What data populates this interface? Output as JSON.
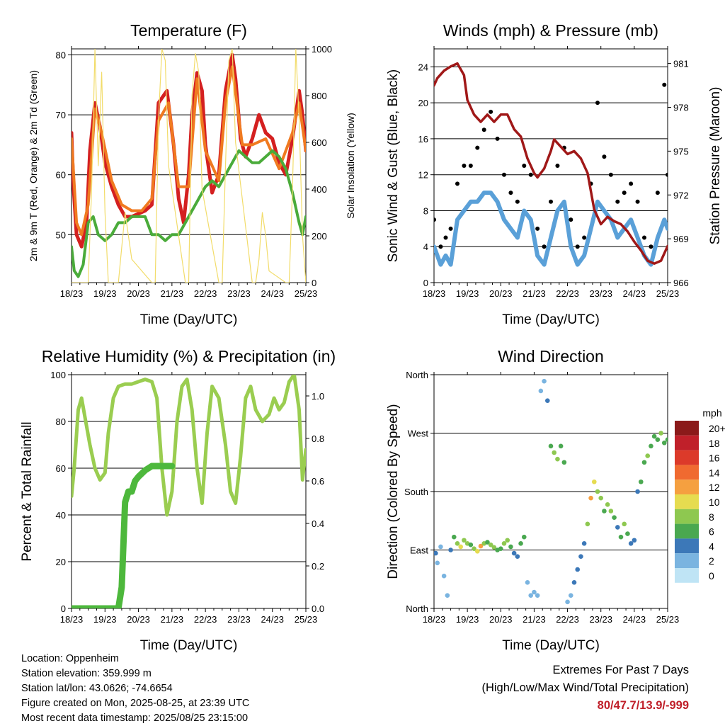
{
  "panels": {
    "temperature": {
      "title": "Temperature (F)",
      "ylabel_left": "2m & 9m T (Red, Orange) & 2m Td (Green)",
      "ylabel_right": "Solar Insolation (Yellow)",
      "xlabel": "Time (Day/UTC)"
    },
    "winds": {
      "title": "Winds (mph) & Pressure (mb)",
      "ylabel_left": "Sonic Wind & Gust (Blue, Black)",
      "ylabel_right": "Station Pressure (Maroon)",
      "xlabel": "Time (Day/UTC)"
    },
    "humidity": {
      "title": "Relative Humidity (%) & Precipitation (in)",
      "ylabel_left": "Percent & Total Rainfall",
      "xlabel": "Time (Day/UTC)"
    },
    "direction": {
      "title": "Wind Direction",
      "ylabel_left": "Direction (Colored By Speed)",
      "xlabel": "Time (Day/UTC)",
      "legend_title": "mph"
    }
  },
  "info": {
    "location": "Location: Oppenheim",
    "elevation": "Station elevation: 359.999 m",
    "latlon": "Station lat/lon: 43.0626; -74.6654",
    "created": "Figure created on Mon, 2025-08-25, at 23:39 UTC",
    "recent": "Most recent data timestamp: 2025/08/25 23:15:00"
  },
  "extremes": {
    "title": "Extremes For Past 7 Days",
    "subtitle": "(High/Low/Max Wind/Total Precipitation)",
    "values": "80/47.7/13.9/-999"
  },
  "colors": {
    "temp_2m": "#d42020",
    "temp_9m": "#f07a20",
    "dewpoint": "#4aab3a",
    "solar": "#f2dc6a",
    "wind": "#5aa0d8",
    "gust": "#000000",
    "pressure": "#a01818",
    "rh": "#9acd50",
    "precip": "#4db83c"
  },
  "chart_data": [
    {
      "type": "line",
      "title": "Temperature (F)",
      "x_ticks": [
        "18/23",
        "19/23",
        "20/23",
        "21/23",
        "22/23",
        "23/23",
        "24/23",
        "25/23"
      ],
      "xlim": [
        0,
        7
      ],
      "ylim": [
        42,
        81
      ],
      "yticks": [
        50,
        60,
        70,
        80
      ],
      "y2lim": [
        0,
        1000
      ],
      "y2ticks": [
        0,
        200,
        400,
        600,
        800,
        1000
      ],
      "grid": true,
      "series": [
        {
          "name": "2m T",
          "axis": "left",
          "color": "#d42020",
          "x": [
            0,
            0.06,
            0.15,
            0.3,
            0.45,
            0.55,
            0.7,
            0.85,
            1.0,
            1.2,
            1.4,
            1.6,
            1.8,
            2.0,
            2.2,
            2.4,
            2.6,
            2.85,
            3.05,
            3.2,
            3.35,
            3.5,
            3.6,
            3.75,
            3.9,
            4.0,
            4.2,
            4.4,
            4.6,
            4.8,
            4.9,
            5.05,
            5.2,
            5.4,
            5.6,
            5.8,
            6.0,
            6.2,
            6.4,
            6.6,
            6.8,
            6.9,
            7.0
          ],
          "y": [
            67,
            58,
            50,
            48,
            52,
            64,
            72,
            68,
            62,
            58,
            55,
            53,
            53,
            53.5,
            54,
            55,
            72,
            74,
            65,
            56,
            52,
            60,
            70,
            77,
            74,
            65,
            57,
            60,
            74,
            80,
            76,
            66,
            63,
            66,
            70,
            67,
            66,
            62,
            60,
            66,
            74,
            70,
            64
          ]
        },
        {
          "name": "9m T",
          "axis": "left",
          "color": "#f07a20",
          "x": [
            0,
            0.15,
            0.3,
            0.5,
            0.7,
            0.9,
            1.2,
            1.5,
            1.8,
            2.1,
            2.4,
            2.6,
            2.9,
            3.2,
            3.5,
            3.75,
            4.0,
            4.4,
            4.6,
            4.8,
            5.1,
            5.4,
            5.8,
            6.2,
            6.6,
            6.8,
            7.0
          ],
          "y": [
            66,
            52,
            50,
            55,
            71,
            67,
            59,
            55,
            54,
            54,
            56,
            69,
            72,
            58,
            58,
            76,
            64,
            59,
            72,
            78,
            65,
            65,
            66,
            61,
            67,
            72,
            64
          ]
        },
        {
          "name": "2m Td",
          "axis": "left",
          "color": "#4aab3a",
          "x": [
            0,
            0.08,
            0.2,
            0.35,
            0.5,
            0.65,
            0.8,
            1.0,
            1.2,
            1.4,
            1.6,
            1.8,
            2.0,
            2.2,
            2.4,
            2.6,
            2.8,
            3.0,
            3.2,
            3.4,
            3.6,
            3.8,
            4.0,
            4.2,
            4.4,
            4.6,
            4.8,
            5.0,
            5.2,
            5.4,
            5.6,
            5.8,
            6.0,
            6.2,
            6.4,
            6.6,
            6.8,
            6.9,
            7.0
          ],
          "y": [
            48,
            44,
            43,
            45,
            52,
            53,
            50,
            49,
            50,
            52,
            52,
            53,
            53,
            53,
            50,
            50,
            49,
            50,
            50,
            52,
            54,
            56,
            58,
            59,
            58,
            60,
            62,
            64,
            63,
            62,
            62,
            63,
            64,
            63,
            61,
            57,
            52,
            50,
            53
          ]
        },
        {
          "name": "Solar",
          "axis": "right",
          "color": "#f2dc6a",
          "x": [
            0,
            0.5,
            0.6,
            0.7,
            0.8,
            0.9,
            1.0,
            1.1,
            1.4,
            1.5,
            1.6,
            1.7,
            1.8,
            2.4,
            2.5,
            2.6,
            2.7,
            2.8,
            2.9,
            3.4,
            3.5,
            3.6,
            3.7,
            3.8,
            3.9,
            4.4,
            4.5,
            4.6,
            4.7,
            4.8,
            4.9,
            5.4,
            5.5,
            5.6,
            5.7,
            5.8,
            5.9,
            6.4,
            6.5,
            6.6,
            6.7,
            6.8,
            6.9,
            7.0
          ],
          "y": [
            0,
            0,
            400,
            1000,
            500,
            900,
            300,
            0,
            0,
            150,
            300,
            200,
            100,
            0,
            0,
            700,
            1000,
            950,
            500,
            0,
            0,
            800,
            980,
            900,
            400,
            0,
            0,
            500,
            950,
            1000,
            600,
            0,
            0,
            100,
            300,
            200,
            50,
            0,
            0,
            400,
            1000,
            700,
            200,
            0
          ]
        }
      ]
    },
    {
      "type": "line",
      "title": "Winds (mph) & Pressure (mb)",
      "x_ticks": [
        "18/23",
        "19/23",
        "20/23",
        "21/23",
        "22/23",
        "23/23",
        "24/23",
        "25/23"
      ],
      "xlim": [
        0,
        7
      ],
      "ylim": [
        0,
        26
      ],
      "yticks": [
        0,
        4,
        8,
        12,
        16,
        20,
        24
      ],
      "y2lim": [
        966,
        982
      ],
      "y2ticks": [
        966,
        969,
        972,
        975,
        978,
        981
      ],
      "grid": true,
      "series": [
        {
          "name": "Sonic Wind",
          "axis": "left",
          "color": "#5aa0d8",
          "x": [
            0,
            0.2,
            0.35,
            0.5,
            0.7,
            0.9,
            1.1,
            1.3,
            1.5,
            1.7,
            1.9,
            2.1,
            2.3,
            2.5,
            2.7,
            2.9,
            3.1,
            3.3,
            3.5,
            3.7,
            3.9,
            4.1,
            4.3,
            4.5,
            4.7,
            4.9,
            5.1,
            5.3,
            5.5,
            5.7,
            5.9,
            6.1,
            6.3,
            6.5,
            6.7,
            6.9,
            7.0
          ],
          "y": [
            4,
            2,
            3,
            2,
            7,
            8,
            9,
            9,
            10,
            10,
            9,
            7,
            6,
            5,
            8,
            7,
            3,
            2,
            5,
            8,
            9,
            4,
            2,
            3,
            6,
            9,
            8,
            7,
            5,
            6,
            7,
            5,
            3,
            2,
            5,
            7,
            6
          ]
        },
        {
          "name": "Gust",
          "axis": "left",
          "color": "#000000",
          "x": [
            0,
            0.2,
            0.35,
            0.5,
            0.7,
            0.9,
            1.1,
            1.3,
            1.5,
            1.7,
            1.9,
            2.1,
            2.3,
            2.5,
            2.7,
            2.9,
            3.1,
            3.3,
            3.5,
            3.7,
            3.9,
            4.1,
            4.3,
            4.5,
            4.7,
            4.9,
            5.1,
            5.3,
            5.5,
            5.7,
            5.9,
            6.1,
            6.3,
            6.5,
            6.7,
            6.9,
            7.0
          ],
          "y": [
            7,
            4,
            5,
            6,
            11,
            13,
            13,
            15,
            17,
            19,
            16,
            12,
            10,
            9,
            13,
            12,
            6,
            4,
            9,
            13,
            15,
            7,
            4,
            5,
            11,
            20,
            14,
            12,
            9,
            10,
            11,
            9,
            5,
            4,
            10,
            22,
            12
          ]
        },
        {
          "name": "Pressure",
          "axis": "right",
          "color": "#a01818",
          "x": [
            0,
            0.1,
            0.3,
            0.5,
            0.7,
            0.9,
            1.0,
            1.2,
            1.4,
            1.6,
            1.8,
            2.0,
            2.2,
            2.4,
            2.6,
            2.8,
            3.0,
            3.1,
            3.3,
            3.5,
            3.6,
            3.8,
            4.0,
            4.2,
            4.4,
            4.6,
            4.8,
            5.0,
            5.2,
            5.4,
            5.6,
            5.8,
            6.0,
            6.2,
            6.4,
            6.6,
            6.8,
            7.0
          ],
          "y": [
            979.5,
            980,
            980.5,
            980.8,
            981,
            980.2,
            978.5,
            977.5,
            977,
            977.5,
            977,
            977.5,
            977.5,
            976.5,
            976,
            974.5,
            973.5,
            973.2,
            973.8,
            975,
            975.8,
            975.3,
            974.8,
            975,
            974.5,
            973.5,
            971,
            970,
            970.5,
            970.2,
            970,
            969.5,
            968.8,
            968.2,
            967.5,
            967.3,
            967.5,
            968.5
          ]
        }
      ]
    },
    {
      "type": "line",
      "title": "Relative Humidity (%) & Precipitation (in)",
      "x_ticks": [
        "18/23",
        "19/23",
        "20/23",
        "21/23",
        "22/23",
        "23/23",
        "24/23",
        "25/23"
      ],
      "xlim": [
        0,
        7
      ],
      "ylim": [
        0,
        100
      ],
      "yticks": [
        0,
        20,
        40,
        60,
        80,
        100
      ],
      "y2lim": [
        0,
        1.1
      ],
      "y2ticks": [
        0.0,
        0.2,
        0.4,
        0.6,
        0.8,
        1.0
      ],
      "grid": true,
      "series": [
        {
          "name": "RH",
          "axis": "left",
          "color": "#9acd50",
          "x": [
            0,
            0.08,
            0.2,
            0.3,
            0.4,
            0.55,
            0.7,
            0.85,
            1.0,
            1.1,
            1.25,
            1.4,
            1.6,
            1.8,
            2.0,
            2.2,
            2.4,
            2.55,
            2.7,
            2.85,
            3.0,
            3.15,
            3.3,
            3.45,
            3.6,
            3.75,
            3.9,
            4.05,
            4.2,
            4.4,
            4.6,
            4.75,
            4.9,
            5.05,
            5.2,
            5.35,
            5.5,
            5.7,
            5.9,
            6.05,
            6.2,
            6.35,
            6.5,
            6.65,
            6.8,
            6.9,
            7.0
          ],
          "y": [
            48,
            60,
            85,
            90,
            82,
            70,
            60,
            55,
            58,
            75,
            90,
            95,
            96,
            96,
            97,
            98,
            97,
            90,
            60,
            40,
            50,
            80,
            95,
            98,
            85,
            60,
            45,
            75,
            95,
            90,
            70,
            50,
            45,
            65,
            90,
            95,
            85,
            80,
            83,
            90,
            85,
            88,
            97,
            100,
            85,
            55,
            68
          ]
        },
        {
          "name": "Total Rainfall",
          "axis": "right",
          "color": "#4db83c",
          "x": [
            0,
            1.4,
            1.5,
            1.55,
            1.6,
            1.7,
            1.8,
            1.9,
            2.0,
            2.2,
            2.4,
            2.6,
            2.8,
            3.0
          ],
          "y": [
            0,
            0,
            0.1,
            0.3,
            0.5,
            0.55,
            0.55,
            0.6,
            0.62,
            0.65,
            0.67,
            0.67,
            0.67,
            0.67
          ]
        }
      ]
    },
    {
      "type": "scatter",
      "title": "Wind Direction",
      "x_ticks": [
        "18/23",
        "19/23",
        "20/23",
        "21/23",
        "22/23",
        "23/23",
        "24/23",
        "25/23"
      ],
      "xlim": [
        0,
        7
      ],
      "y_ticks": [
        "North",
        "East",
        "South",
        "West",
        "North"
      ],
      "ylim": [
        0,
        360
      ],
      "grid": true,
      "legend": {
        "title": "mph",
        "position": "right",
        "labels": [
          "20+",
          "18",
          "16",
          "14",
          "12",
          "10",
          "8",
          "6",
          "4",
          "2",
          "0"
        ],
        "colors": [
          "#8b1a1a",
          "#c0202a",
          "#dc3a2a",
          "#f06a30",
          "#f5a040",
          "#e6dc50",
          "#8ec850",
          "#4aa850",
          "#3c78b8",
          "#7ab4e0",
          "#bfe4f5"
        ]
      },
      "x": [
        0.05,
        0.1,
        0.2,
        0.3,
        0.4,
        0.5,
        0.6,
        0.7,
        0.8,
        0.9,
        1.0,
        1.1,
        1.2,
        1.3,
        1.4,
        1.5,
        1.6,
        1.7,
        1.8,
        1.9,
        2.0,
        2.1,
        2.2,
        2.3,
        2.4,
        2.5,
        2.6,
        2.7,
        2.8,
        2.9,
        3.0,
        3.1,
        3.2,
        3.3,
        3.4,
        3.5,
        3.6,
        3.7,
        3.8,
        3.9,
        4.0,
        4.1,
        4.2,
        4.3,
        4.4,
        4.5,
        4.6,
        4.7,
        4.8,
        4.9,
        5.0,
        5.1,
        5.2,
        5.3,
        5.4,
        5.5,
        5.6,
        5.7,
        5.8,
        5.9,
        6.0,
        6.1,
        6.2,
        6.3,
        6.4,
        6.5,
        6.6,
        6.7,
        6.8,
        6.9,
        7.0
      ],
      "y": [
        85,
        70,
        95,
        50,
        20,
        90,
        110,
        100,
        95,
        105,
        100,
        98,
        92,
        88,
        96,
        100,
        102,
        98,
        94,
        90,
        92,
        100,
        105,
        95,
        85,
        80,
        100,
        110,
        40,
        20,
        25,
        20,
        335,
        350,
        320,
        250,
        240,
        230,
        250,
        225,
        10,
        20,
        40,
        60,
        80,
        100,
        130,
        170,
        195,
        180,
        170,
        150,
        160,
        150,
        140,
        125,
        110,
        130,
        115,
        100,
        105,
        180,
        195,
        225,
        235,
        250,
        265,
        260,
        270,
        255,
        260
      ],
      "speed": [
        3,
        2,
        1,
        2,
        1,
        4,
        6,
        8,
        10,
        8,
        7,
        6,
        8,
        10,
        12,
        8,
        6,
        7,
        8,
        6,
        5,
        7,
        8,
        6,
        4,
        3,
        5,
        6,
        2,
        1,
        2,
        1,
        2,
        1,
        3,
        6,
        8,
        7,
        6,
        5,
        1,
        2,
        3,
        4,
        3,
        4,
        8,
        12,
        10,
        8,
        7,
        6,
        8,
        7,
        5,
        4,
        6,
        7,
        5,
        4,
        3,
        4,
        5,
        6,
        7,
        6,
        5,
        6,
        7,
        6,
        5
      ]
    }
  ]
}
